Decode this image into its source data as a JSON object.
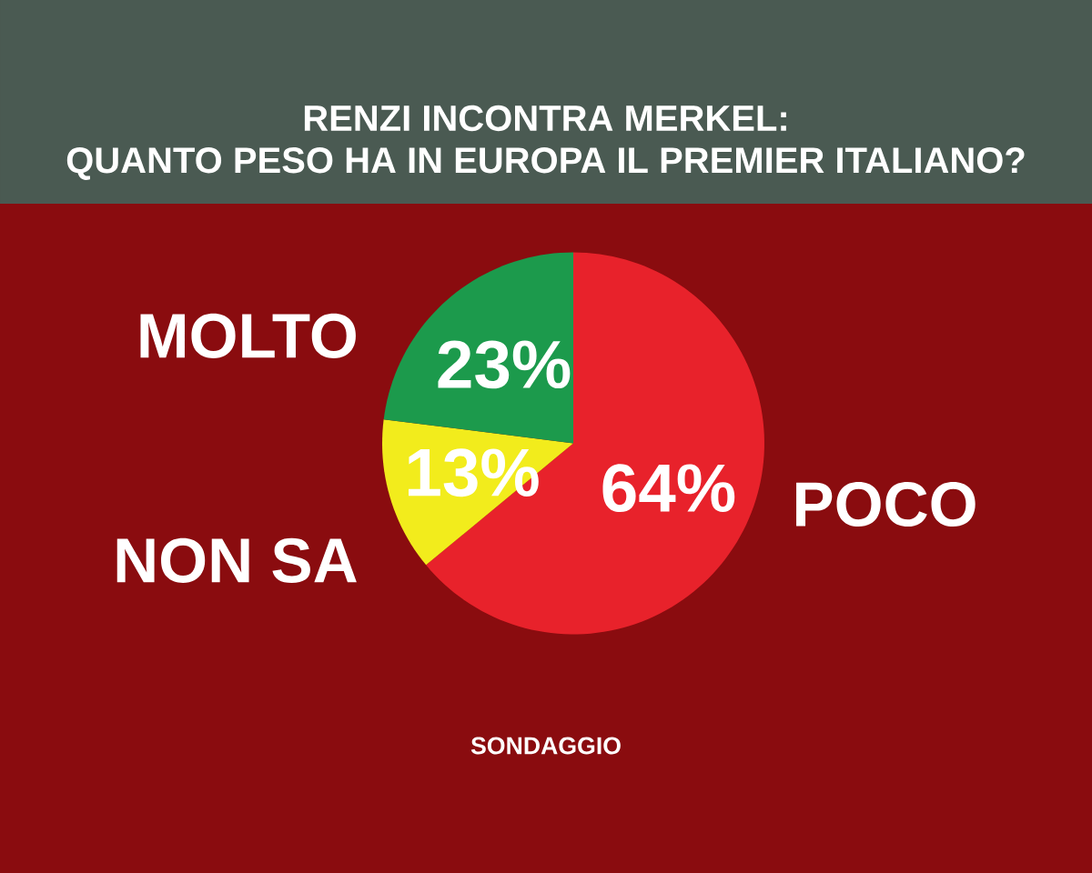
{
  "chart_data": {
    "type": "pie",
    "title": "RENZI INCONTRA MERKEL:",
    "subtitle": "QUANTO PESO HA IN EUROPA IL  PREMIER ITALIANO?",
    "categories": [
      "POCO",
      "NON SA",
      "MOLTO"
    ],
    "values": [
      64,
      13,
      23
    ],
    "value_labels": [
      "64%",
      "13%",
      "23%"
    ],
    "colors": [
      "#e8222b",
      "#f2ec1c",
      "#1c9a4c"
    ],
    "annotations": [
      "SONDAGGIO"
    ]
  }
}
